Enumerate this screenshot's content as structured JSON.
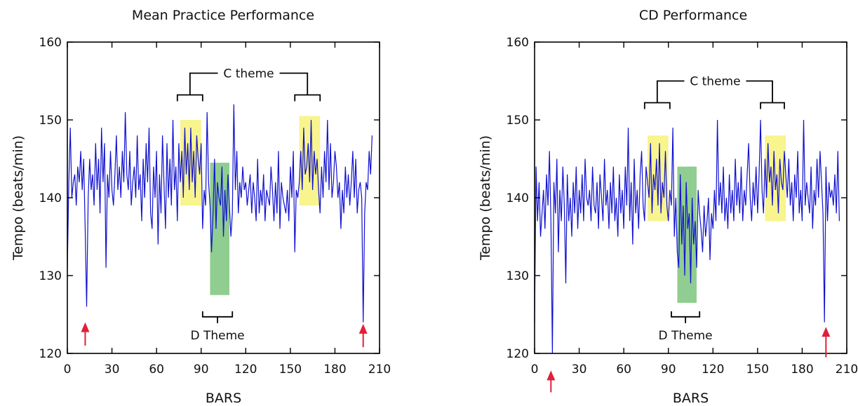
{
  "chart_data": [
    {
      "type": "line",
      "title": "Mean Practice Performance",
      "xlabel": "BARS",
      "ylabel": "Tempo (beats/min)",
      "xlim": [
        0,
        210
      ],
      "ylim": [
        120,
        160
      ],
      "xticks": [
        0,
        30,
        60,
        90,
        120,
        150,
        180,
        210
      ],
      "yticks": [
        120,
        130,
        140,
        150,
        160
      ],
      "grid": false,
      "highlights": [
        {
          "label": "C theme",
          "color": "#f7f27a",
          "x": [
            76,
            90
          ],
          "y": [
            139,
            150
          ]
        },
        {
          "label": "D Theme",
          "color": "#7cc47c",
          "x": [
            96,
            109
          ],
          "y": [
            127.5,
            144.5
          ]
        },
        {
          "label": "C theme",
          "color": "#f7f27a",
          "x": [
            156,
            170
          ],
          "y": [
            139,
            150.5
          ]
        }
      ],
      "annotations": [
        {
          "text": "C theme",
          "spans": [
            [
              74,
              91
            ],
            [
              153,
              170
            ]
          ],
          "y": 156
        },
        {
          "text": "D Theme",
          "spans": [
            [
              91,
              111
            ]
          ],
          "y": 124.7
        }
      ],
      "markers": [
        {
          "type": "arrow-up",
          "x": 12,
          "y_tip": 124,
          "y_tail": 121
        },
        {
          "type": "arrow-up",
          "x": 199,
          "y_tip": 123.8,
          "y_tail": 120.8
        }
      ],
      "series": [
        {
          "x": [
            0,
            1,
            2,
            3,
            4,
            5,
            6,
            7,
            8,
            9,
            10,
            11,
            12,
            13,
            14,
            15,
            16,
            17,
            18,
            19,
            20,
            21,
            22,
            23,
            24,
            25,
            26,
            27,
            28,
            29,
            30,
            31,
            32,
            33,
            34,
            35,
            36,
            37,
            38,
            39,
            40,
            41,
            42,
            43,
            44,
            45,
            46,
            47,
            48,
            49,
            50,
            51,
            52,
            53,
            54,
            55,
            56,
            57,
            58,
            59,
            60,
            61,
            62,
            63,
            64,
            65,
            66,
            67,
            68,
            69,
            70,
            71,
            72,
            73,
            74,
            75,
            76,
            77,
            78,
            79,
            80,
            81,
            82,
            83,
            84,
            85,
            86,
            87,
            88,
            89,
            90,
            91,
            92,
            93,
            94,
            95,
            96,
            97,
            98,
            99,
            100,
            101,
            102,
            103,
            104,
            105,
            106,
            107,
            108,
            109,
            110,
            111,
            112,
            113,
            114,
            115,
            116,
            117,
            118,
            119,
            120,
            121,
            122,
            123,
            124,
            125,
            126,
            127,
            128,
            129,
            130,
            131,
            132,
            133,
            134,
            135,
            136,
            137,
            138,
            139,
            140,
            141,
            142,
            143,
            144,
            145,
            146,
            147,
            148,
            149,
            150,
            151,
            152,
            153,
            154,
            155,
            156,
            157,
            158,
            159,
            160,
            161,
            162,
            163,
            164,
            165,
            166,
            167,
            168,
            169,
            170,
            171,
            172,
            173,
            174,
            175,
            176,
            177,
            178,
            179,
            180,
            181,
            182,
            183,
            184,
            185,
            186,
            187,
            188,
            189,
            190,
            191,
            192,
            193,
            194,
            195,
            196,
            197,
            198,
            199,
            200,
            201,
            202,
            203,
            204,
            205
          ],
          "y": [
            131,
            142,
            149,
            140,
            142,
            143,
            139,
            144,
            142,
            146,
            141,
            145,
            136,
            126,
            140,
            145,
            141,
            143,
            139,
            147,
            141,
            145,
            138,
            149,
            142,
            147,
            131,
            143,
            140,
            146,
            141,
            139,
            143,
            148,
            141,
            144,
            140,
            146,
            142,
            151,
            143,
            141,
            146,
            139,
            142,
            144,
            140,
            148,
            141,
            143,
            137,
            145,
            140,
            147,
            142,
            149,
            138,
            136,
            144,
            140,
            146,
            134,
            143,
            138,
            148,
            142,
            136,
            147,
            140,
            145,
            139,
            150,
            141,
            144,
            137,
            147,
            142,
            146,
            140,
            149,
            143,
            147,
            141,
            149,
            142,
            146,
            140,
            148,
            145,
            143,
            147,
            136,
            141,
            139,
            151,
            142,
            139,
            133,
            138,
            145,
            136,
            142,
            140,
            139,
            144,
            135,
            141,
            137,
            143,
            139,
            135,
            138,
            152,
            141,
            146,
            138,
            142,
            140,
            144,
            141,
            142,
            139,
            141,
            143,
            138,
            142,
            140,
            137,
            145,
            138,
            141,
            139,
            143,
            137,
            141,
            140,
            139,
            144,
            141,
            137,
            142,
            138,
            146,
            136,
            142,
            140,
            139,
            138,
            141,
            137,
            144,
            140,
            146,
            133,
            141,
            140,
            142,
            146,
            141,
            149,
            143,
            144,
            147,
            142,
            150,
            141,
            146,
            143,
            145,
            141,
            138,
            144,
            140,
            146,
            142,
            150,
            141,
            147,
            140,
            142,
            146,
            144,
            140,
            142,
            136,
            141,
            138,
            144,
            140,
            143,
            139,
            142,
            146,
            140,
            145,
            138,
            141,
            142,
            140,
            124,
            138,
            142,
            141,
            146,
            143,
            148
          ]
        }
      ]
    },
    {
      "type": "line",
      "title": "CD Performance",
      "xlabel": "BARS",
      "ylabel": "Tempo (beats/min)",
      "xlim": [
        0,
        210
      ],
      "ylim": [
        120,
        160
      ],
      "xticks": [
        0,
        30,
        60,
        90,
        120,
        150,
        180,
        210
      ],
      "yticks": [
        120,
        130,
        140,
        150,
        160
      ],
      "grid": false,
      "highlights": [
        {
          "label": "C theme",
          "color": "#f7f27a",
          "x": [
            76,
            90
          ],
          "y": [
            137,
            148
          ]
        },
        {
          "label": "D Theme",
          "color": "#7cc47c",
          "x": [
            96,
            109
          ],
          "y": [
            126.5,
            144
          ]
        },
        {
          "label": "C theme",
          "color": "#f7f27a",
          "x": [
            155,
            169
          ],
          "y": [
            137,
            148
          ]
        }
      ],
      "annotations": [
        {
          "text": "C theme",
          "spans": [
            [
              74,
              91
            ],
            [
              152,
              168
            ]
          ],
          "y": 155
        },
        {
          "text": "D Theme",
          "spans": [
            [
              92,
              111
            ]
          ],
          "y": 124.7
        }
      ],
      "markers": [
        {
          "type": "arrow-up",
          "x": 11,
          "y_tip": 117.8,
          "y_tail": 115
        },
        {
          "type": "arrow-up",
          "x": 196,
          "y_tip": 123.4,
          "y_tail": 119.5
        }
      ],
      "series": [
        {
          "x": [
            0,
            1,
            2,
            3,
            4,
            5,
            6,
            7,
            8,
            9,
            10,
            11,
            12,
            13,
            14,
            15,
            16,
            17,
            18,
            19,
            20,
            21,
            22,
            23,
            24,
            25,
            26,
            27,
            28,
            29,
            30,
            31,
            32,
            33,
            34,
            35,
            36,
            37,
            38,
            39,
            40,
            41,
            42,
            43,
            44,
            45,
            46,
            47,
            48,
            49,
            50,
            51,
            52,
            53,
            54,
            55,
            56,
            57,
            58,
            59,
            60,
            61,
            62,
            63,
            64,
            65,
            66,
            67,
            68,
            69,
            70,
            71,
            72,
            73,
            74,
            75,
            76,
            77,
            78,
            79,
            80,
            81,
            82,
            83,
            84,
            85,
            86,
            87,
            88,
            89,
            90,
            91,
            92,
            93,
            94,
            95,
            96,
            97,
            98,
            99,
            100,
            101,
            102,
            103,
            104,
            105,
            106,
            107,
            108,
            109,
            110,
            111,
            112,
            113,
            114,
            115,
            116,
            117,
            118,
            119,
            120,
            121,
            122,
            123,
            124,
            125,
            126,
            127,
            128,
            129,
            130,
            131,
            132,
            133,
            134,
            135,
            136,
            137,
            138,
            139,
            140,
            141,
            142,
            143,
            144,
            145,
            146,
            147,
            148,
            149,
            150,
            151,
            152,
            153,
            154,
            155,
            156,
            157,
            158,
            159,
            160,
            161,
            162,
            163,
            164,
            165,
            166,
            167,
            168,
            169,
            170,
            171,
            172,
            173,
            174,
            175,
            176,
            177,
            178,
            179,
            180,
            181,
            182,
            183,
            184,
            185,
            186,
            187,
            188,
            189,
            190,
            191,
            192,
            193,
            194,
            195,
            196,
            197,
            198,
            199,
            200,
            201,
            202,
            203,
            204,
            205
          ],
          "y": [
            124,
            144,
            137,
            142,
            135,
            138,
            141,
            136,
            143,
            139,
            146,
            137,
            120,
            142,
            138,
            145,
            133,
            141,
            137,
            144,
            139,
            129,
            143,
            137,
            140,
            135,
            142,
            138,
            144,
            136,
            141,
            138,
            143,
            137,
            145,
            140,
            139,
            141,
            137,
            144,
            139,
            138,
            142,
            136,
            143,
            140,
            137,
            145,
            139,
            141,
            136,
            142,
            138,
            144,
            137,
            140,
            135,
            143,
            138,
            141,
            136,
            144,
            139,
            149,
            137,
            142,
            134,
            145,
            138,
            141,
            136,
            143,
            146,
            139,
            137,
            144,
            142,
            140,
            147,
            138,
            143,
            141,
            145,
            139,
            147,
            138,
            142,
            140,
            146,
            139,
            137,
            141,
            139,
            149,
            135,
            140,
            133,
            131,
            143,
            134,
            139,
            130,
            142,
            136,
            138,
            129,
            140,
            134,
            137,
            131,
            141,
            138,
            136,
            133,
            139,
            135,
            137,
            140,
            132,
            138,
            136,
            141,
            137,
            150,
            139,
            142,
            138,
            144,
            137,
            140,
            136,
            143,
            138,
            141,
            137,
            145,
            139,
            142,
            138,
            144,
            137,
            141,
            139,
            143,
            147,
            140,
            137,
            142,
            139,
            144,
            138,
            143,
            150,
            141,
            138,
            145,
            140,
            147,
            142,
            144,
            139,
            146,
            141,
            143,
            138,
            145,
            142,
            141,
            146,
            143,
            140,
            145,
            139,
            142,
            137,
            143,
            140,
            146,
            138,
            141,
            137,
            150,
            139,
            142,
            140,
            138,
            144,
            136,
            141,
            139,
            145,
            140,
            146,
            142,
            138,
            124,
            144,
            137,
            142,
            140,
            141,
            139,
            143,
            138,
            146,
            137
          ]
        }
      ]
    }
  ]
}
